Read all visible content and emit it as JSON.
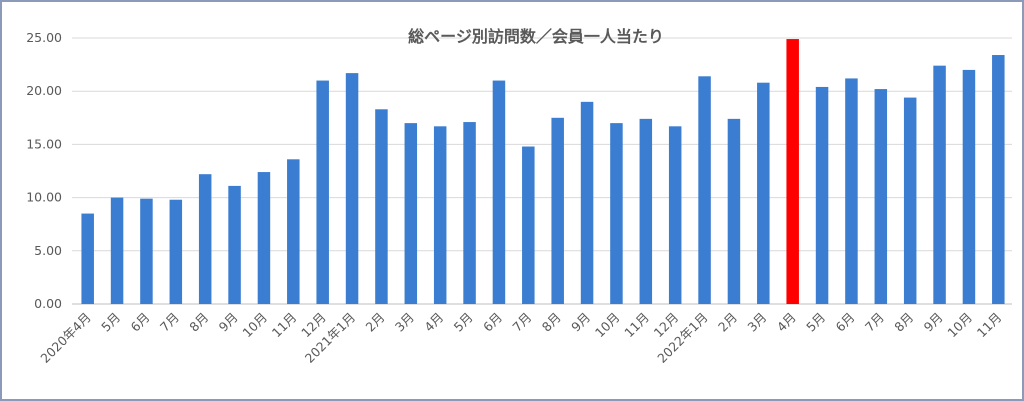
{
  "chart_data": {
    "type": "bar",
    "title": "総ページ別訪問数／会員一人当たり",
    "xlabel": "",
    "ylabel": "",
    "ylim": [
      0,
      25
    ],
    "y_ticks": [
      "0.00",
      "5.00",
      "10.00",
      "15.00",
      "20.00",
      "25.00"
    ],
    "grid": true,
    "legend": "none",
    "categories": [
      "2020年4月",
      "5月",
      "6月",
      "7月",
      "8月",
      "9月",
      "10月",
      "11月",
      "12月",
      "2021年1月",
      "2月",
      "3月",
      "4月",
      "5月",
      "6月",
      "7月",
      "8月",
      "9月",
      "10月",
      "11月",
      "12月",
      "2022年1月",
      "2月",
      "3月",
      "4月",
      "5月",
      "6月",
      "7月",
      "8月",
      "9月",
      "10月",
      "11月"
    ],
    "values": [
      8.5,
      10.0,
      9.9,
      9.8,
      12.2,
      11.1,
      12.4,
      13.6,
      21.0,
      21.7,
      18.3,
      17.0,
      16.7,
      17.1,
      21.0,
      14.8,
      17.5,
      19.0,
      17.0,
      17.4,
      16.7,
      21.4,
      17.4,
      20.8,
      24.9,
      20.4,
      21.2,
      20.2,
      19.4,
      22.4,
      22.0,
      23.4
    ],
    "highlight_index": 24,
    "colors": {
      "bar": "#3b7dd0",
      "highlight": "#ff0000",
      "grid": "#d9d9d9",
      "axis": "#bfbfbf",
      "text": "#595959",
      "border": "#8a9ab8"
    }
  }
}
